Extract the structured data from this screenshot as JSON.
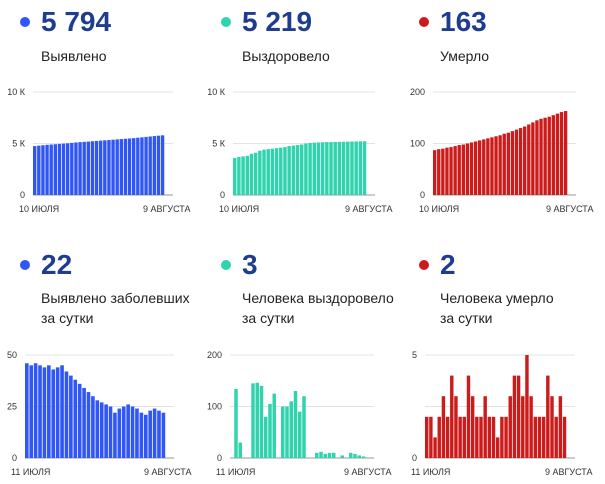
{
  "panels": [
    {
      "value": "5 794",
      "label": "Выявлено",
      "color": "#3057f5"
    },
    {
      "value": "5 219",
      "label": "Выздоровело",
      "color": "#2fd3ad"
    },
    {
      "value": "163",
      "label": "Умерло",
      "color": "#cc1b1b"
    },
    {
      "value": "22",
      "label": "Выявлено заболевших\nза сутки",
      "color": "#3057f5"
    },
    {
      "value": "3",
      "label": "Человека выздоровело\nза сутки",
      "color": "#2fd3ad"
    },
    {
      "value": "2",
      "label": "Человека умерло\nза сутки",
      "color": "#cc1b1b"
    }
  ],
  "chart_data": [
    {
      "type": "bar",
      "ylim": [
        0,
        10000
      ],
      "yticks": [
        "10 К",
        "5 К",
        "0"
      ],
      "ytick_values": [
        10000,
        5000,
        0
      ],
      "xlabels": [
        "10 ИЮЛЯ",
        "9 АВГУСТА"
      ],
      "color": "#3057f5",
      "values": [
        4750,
        4790,
        4830,
        4870,
        4900,
        4930,
        4960,
        4990,
        5020,
        5060,
        5100,
        5130,
        5160,
        5190,
        5220,
        5250,
        5280,
        5310,
        5340,
        5370,
        5400,
        5430,
        5460,
        5490,
        5520,
        5560,
        5600,
        5640,
        5680,
        5720,
        5760,
        5794
      ]
    },
    {
      "type": "bar",
      "ylim": [
        0,
        10000
      ],
      "yticks": [
        "10 К",
        "5 К",
        "0"
      ],
      "ytick_values": [
        10000,
        5000,
        0
      ],
      "xlabels": [
        "10 ИЮЛЯ",
        "9 АВГУСТА"
      ],
      "color": "#2fd3ad",
      "values": [
        3600,
        3700,
        3750,
        3800,
        4000,
        4100,
        4300,
        4400,
        4450,
        4500,
        4550,
        4600,
        4650,
        4750,
        4800,
        4850,
        4900,
        5000,
        5050,
        5080,
        5100,
        5120,
        5130,
        5140,
        5150,
        5160,
        5170,
        5180,
        5190,
        5200,
        5210,
        5219
      ]
    },
    {
      "type": "bar",
      "ylim": [
        0,
        200
      ],
      "yticks": [
        "200",
        "100",
        "0"
      ],
      "ytick_values": [
        200,
        100,
        0
      ],
      "xlabels": [
        "10 ИЮЛЯ",
        "9 АВГУСТА"
      ],
      "color": "#cc1b1b",
      "values": [
        87,
        89,
        90,
        92,
        93,
        95,
        97,
        98,
        100,
        102,
        104,
        106,
        108,
        110,
        112,
        114,
        116,
        119,
        121,
        124,
        127,
        130,
        133,
        137,
        141,
        145,
        148,
        150,
        152,
        155,
        158,
        161,
        163
      ]
    },
    {
      "type": "bar",
      "ylim": [
        0,
        50
      ],
      "yticks": [
        "50",
        "25",
        "0"
      ],
      "ytick_values": [
        50,
        25,
        0
      ],
      "xlabels": [
        "11 ИЮЛЯ",
        "9 АВГУСТА"
      ],
      "color": "#3057f5",
      "values": [
        46,
        45,
        46,
        45,
        44,
        45,
        43,
        44,
        45,
        42,
        40,
        38,
        36,
        34,
        32,
        30,
        28,
        27,
        26,
        25,
        22,
        24,
        25,
        26,
        25,
        24,
        22,
        21,
        23,
        24,
        23,
        22
      ]
    },
    {
      "type": "bar",
      "ylim": [
        0,
        200
      ],
      "yticks": [
        "200",
        "100",
        "0"
      ],
      "ytick_values": [
        200,
        100,
        0
      ],
      "xlabels": [
        "11 ИЮЛЯ",
        "9 АВГУСТА"
      ],
      "color": "#2fd3ad",
      "values": [
        0,
        134,
        30,
        0,
        0,
        145,
        146,
        140,
        80,
        105,
        125,
        0,
        100,
        100,
        110,
        130,
        90,
        120,
        0,
        0,
        10,
        12,
        8,
        10,
        10,
        0,
        5,
        0,
        10,
        8,
        5,
        3
      ]
    },
    {
      "type": "bar",
      "ylim": [
        0,
        5
      ],
      "yticks": [
        "5",
        "",
        "0"
      ],
      "ytick_values": [
        5,
        2.5,
        0
      ],
      "xlabels": [
        "11 ИЮЛЯ",
        "9 АВГУСТА"
      ],
      "color": "#cc1b1b",
      "values": [
        2,
        2,
        1,
        2,
        3,
        2,
        4,
        3,
        2,
        2,
        4,
        3,
        2,
        2,
        3,
        2,
        2,
        1,
        2,
        2,
        3,
        4,
        4,
        3,
        5,
        3,
        2,
        2,
        2,
        4,
        3,
        2,
        3,
        2
      ]
    }
  ]
}
